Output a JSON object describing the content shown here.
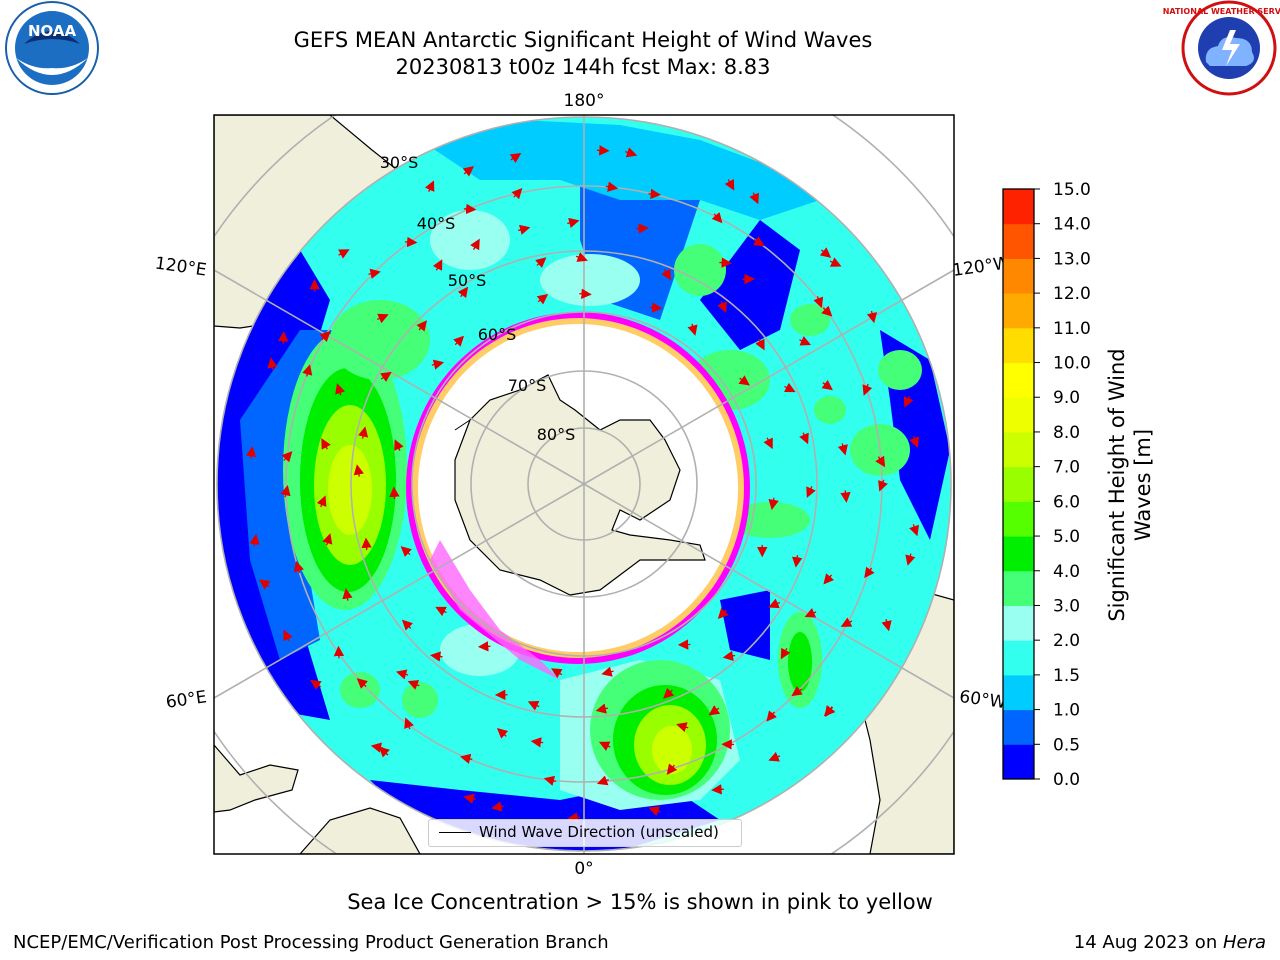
{
  "title": {
    "line1": "GEFS MEAN Antarctic Significant Height of Wind Waves",
    "line2": "20230813 t00z 144h fcst   Max: 8.83"
  },
  "logos": {
    "left": {
      "name": "noaa-logo",
      "text": "NOAA"
    },
    "right": {
      "name": "nws-logo",
      "text": "NATIONAL WEATHER SERVICE"
    }
  },
  "map": {
    "projection": "south-polar-stereographic",
    "longitude_labels": {
      "top": "180°",
      "bottom": "0°",
      "left_upper": "120°E",
      "left_lower": "60°E",
      "right_upper": "120°W",
      "right_lower": "60°W"
    },
    "latitude_labels": [
      "30°S",
      "40°S",
      "50°S",
      "60°S",
      "70°S",
      "80°S"
    ],
    "colors": {
      "ocean_base": "#00ffff",
      "land": "#efefdc",
      "ice": "#ffffff",
      "ice_edge": "#ff00ff",
      "arrow": "#e00000",
      "grid": "#b0b0b0"
    }
  },
  "legend": {
    "label": "Wind Wave Direction (unscaled)"
  },
  "colorbar": {
    "title_line1": "Significant Height of Wind",
    "title_line2": "Waves [m]",
    "ticks": [
      "0.0",
      "0.5",
      "1.0",
      "1.5",
      "2.0",
      "3.0",
      "4.0",
      "5.0",
      "6.0",
      "7.0",
      "8.0",
      "9.0",
      "10.0",
      "11.0",
      "12.0",
      "13.0",
      "14.0",
      "15.0"
    ],
    "colors": [
      "#0000ff",
      "#0066ff",
      "#00ccff",
      "#33ffee",
      "#99fff0",
      "#44ff77",
      "#00ee00",
      "#55ff00",
      "#99ff00",
      "#ccff00",
      "#eeff00",
      "#ffff00",
      "#ffdd00",
      "#ffaa00",
      "#ff8800",
      "#ff5500",
      "#ff2200"
    ]
  },
  "note": "Sea Ice Concentration > 15% is shown in pink to yellow",
  "footer": {
    "left": "NCEP/EMC/Verification Post Processing Product Generation Branch",
    "date": "14 Aug 2023 on ",
    "host": "Hera"
  }
}
